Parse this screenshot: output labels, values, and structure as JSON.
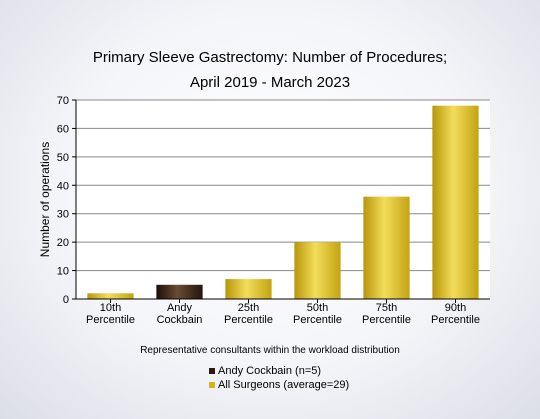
{
  "chart_data": {
    "type": "bar",
    "title": [
      "Primary Sleeve Gastrectomy: Number of Procedures;",
      "April 2019 - March 2023"
    ],
    "xlabel": "Representative consultants within the workload distribution",
    "ylabel": "Number of operations",
    "ylim": [
      0,
      70
    ],
    "yticks": [
      0,
      10,
      20,
      30,
      40,
      50,
      60,
      70
    ],
    "grid": true,
    "categories": [
      [
        "10th",
        "Percentile"
      ],
      [
        "Andy",
        "Cockbain"
      ],
      [
        "25th",
        "Percentile"
      ],
      [
        "50th",
        "Percentile"
      ],
      [
        "75th",
        "Percentile"
      ],
      [
        "90th",
        "Percentile"
      ]
    ],
    "values": [
      2,
      5,
      7,
      20,
      36,
      68
    ],
    "bar_series": [
      "All Surgeons (average=29)",
      "Andy Cockbain (n=5)",
      "All Surgeons (average=29)",
      "All Surgeons (average=29)",
      "All Surgeons (average=29)",
      "All Surgeons (average=29)"
    ],
    "legend": [
      {
        "name": "Andy Cockbain (n=5)",
        "color": "#2a1a10"
      },
      {
        "name": "All Surgeons (average=29)",
        "color": "#d4b41c"
      }
    ],
    "legend_position": "bottom-center"
  }
}
